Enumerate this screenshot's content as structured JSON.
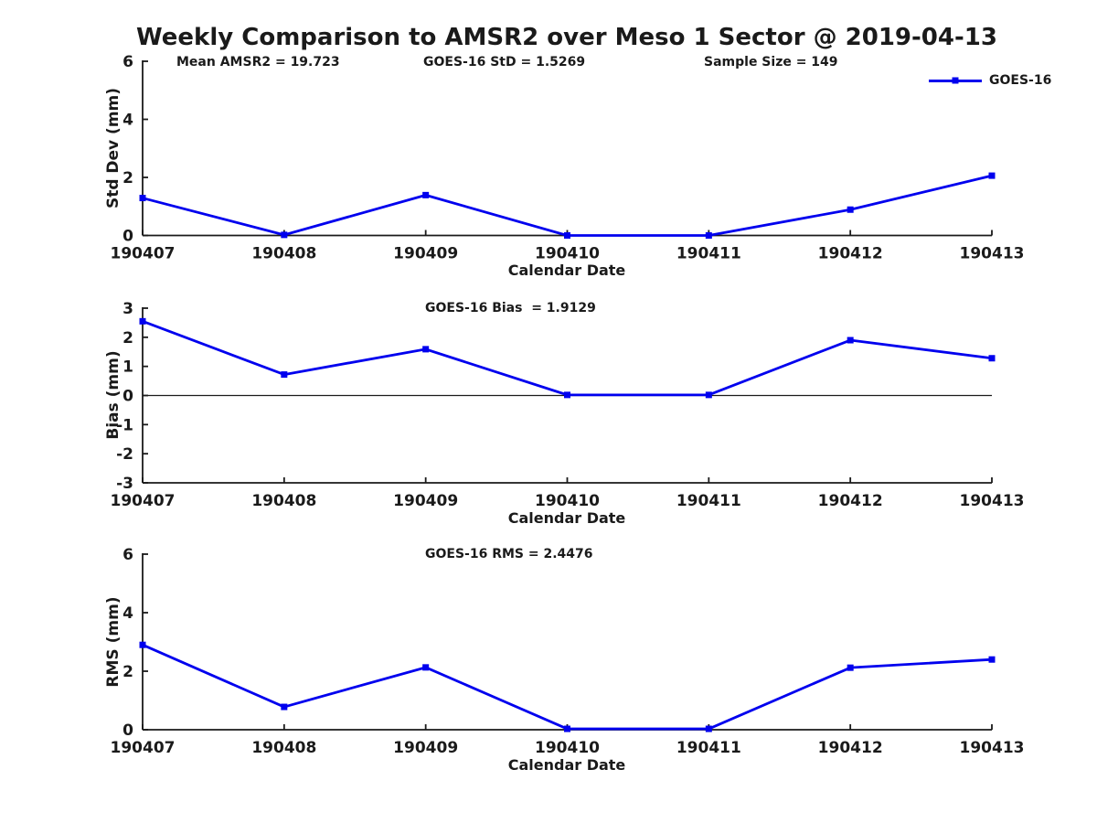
{
  "page": {
    "title": "Weekly Comparison to AMSR2 over Meso 1 Sector @ 2019-04-13"
  },
  "colors": {
    "series": "#0000ee",
    "axis": "#1a1a1a",
    "background": "#ffffff"
  },
  "legend": {
    "label": "GOES-16"
  },
  "categories": [
    "190407",
    "190408",
    "190409",
    "190410",
    "190411",
    "190412",
    "190413"
  ],
  "chart_data": [
    {
      "type": "line",
      "panel": "std-dev",
      "ylabel": "Std Dev (mm)",
      "xlabel": "Calendar Date",
      "ylim": [
        0,
        6
      ],
      "yticks": [
        0,
        2,
        4,
        6
      ],
      "zero_line": false,
      "grid": false,
      "annotations": {
        "left": "Mean AMSR2 = 19.723",
        "center": "GOES-16 StD = 1.5269",
        "right": "Sample Size = 149"
      },
      "series": [
        {
          "name": "GOES-16",
          "values": [
            1.29,
            0.02,
            1.39,
            0.0,
            0.0,
            0.89,
            2.06
          ]
        }
      ]
    },
    {
      "type": "line",
      "panel": "bias",
      "ylabel": "Bias (mm)",
      "xlabel": "Calendar Date",
      "ylim": [
        -3,
        3
      ],
      "yticks": [
        -3,
        -2,
        -1,
        0,
        1,
        2,
        3
      ],
      "zero_line": true,
      "grid": false,
      "annotations": {
        "center": "GOES-16 Bias  = 1.9129"
      },
      "series": [
        {
          "name": "GOES-16",
          "values": [
            2.55,
            0.72,
            1.59,
            0.02,
            0.02,
            1.9,
            1.28
          ]
        }
      ]
    },
    {
      "type": "line",
      "panel": "rms",
      "ylabel": "RMS (mm)",
      "xlabel": "Calendar Date",
      "ylim": [
        0,
        6
      ],
      "yticks": [
        0,
        2,
        4,
        6
      ],
      "zero_line": false,
      "grid": false,
      "annotations": {
        "center": "GOES-16 RMS = 2.4476"
      },
      "series": [
        {
          "name": "GOES-16",
          "values": [
            2.9,
            0.78,
            2.13,
            0.03,
            0.03,
            2.12,
            2.4
          ]
        }
      ]
    }
  ]
}
